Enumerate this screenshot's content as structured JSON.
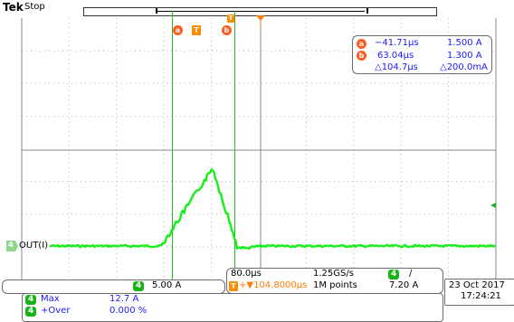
{
  "header": {
    "brand": "Tek",
    "status": "Stop"
  },
  "cursor_readout": {
    "a_time": "−41.71µs",
    "a_value": "1.500 A",
    "b_time": "63.04µs",
    "b_value": "1.300 A",
    "delta_time": "△104.7µs",
    "delta_value": "△200.0mA"
  },
  "cursor_labels": {
    "a": "a",
    "b": "b",
    "trigger": "T"
  },
  "channel": {
    "number": "4",
    "label": "OUT(I)",
    "scale": "5.00 A",
    "color": "#18ee18"
  },
  "horizontal": {
    "time_per_div": "80.0µs",
    "sample_rate": "1.25GS/s",
    "trigger_channel": "4",
    "trigger_slope": "/",
    "delay": "+▼104.8000µs",
    "record_length": "1M points",
    "trigger_level": "7.20 A"
  },
  "datetime": {
    "date": "23 Oct  2017",
    "time": "17:24:21"
  },
  "measurements": [
    {
      "channel": "4",
      "name": "Max",
      "value": "12.7 A"
    },
    {
      "channel": "4",
      "name": "+Over",
      "value": "0.000 %"
    }
  ],
  "colors": {
    "trace": "#18ee18",
    "cursor": "#1fbf1f",
    "trigger": "#ff7a00",
    "cursor_badge": "#ff5a1f"
  }
}
